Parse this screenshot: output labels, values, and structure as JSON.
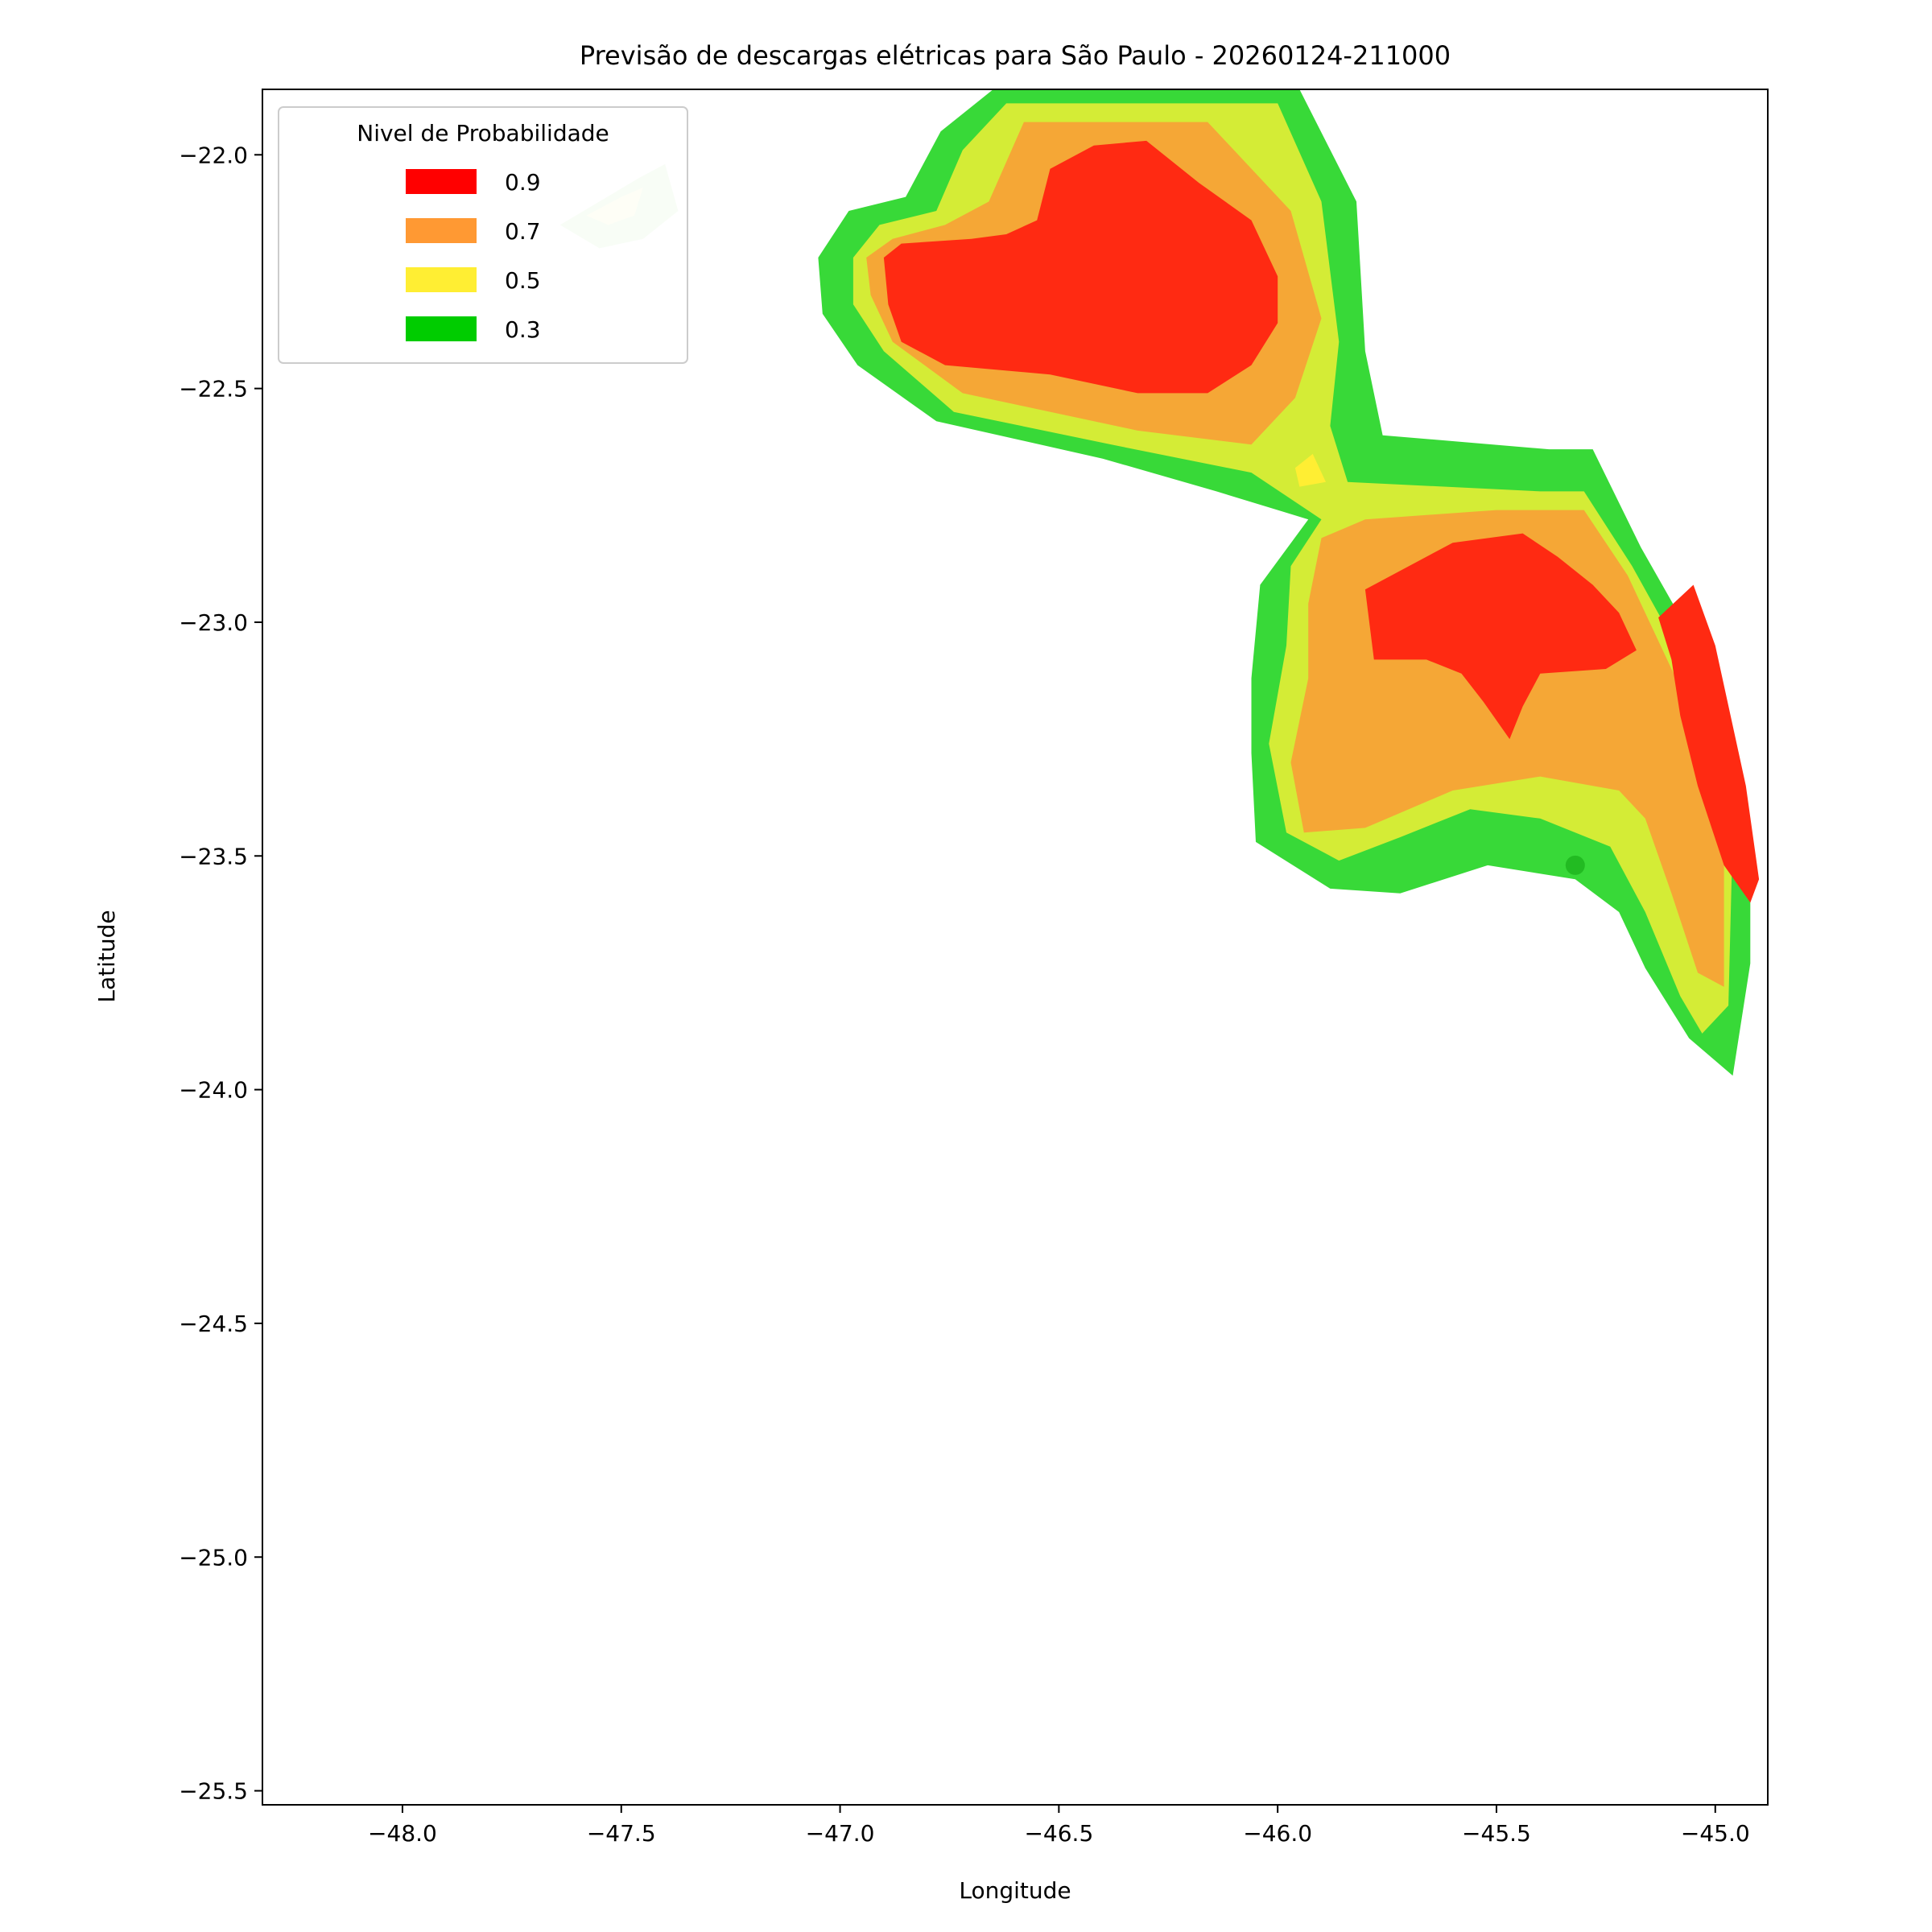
{
  "chart_data": {
    "type": "contour-map",
    "title": "Previsão de descargas elétricas para São Paulo - 20260124-211000",
    "xlabel": "Longitude",
    "ylabel": "Latitude",
    "xlim": [
      -48.32,
      -44.88
    ],
    "ylim": [
      -25.53,
      -21.86
    ],
    "xticks": [
      -48.0,
      -47.5,
      -47.0,
      -46.5,
      -46.0,
      -45.5,
      -45.0
    ],
    "xtick_labels": [
      "−48.0",
      "−47.5",
      "−47.0",
      "−46.5",
      "−46.0",
      "−45.5",
      "−45.0"
    ],
    "yticks": [
      -22.0,
      -22.5,
      -23.0,
      -23.5,
      -24.0,
      -24.5,
      -25.0,
      -25.5
    ],
    "ytick_labels": [
      "−22.0",
      "−22.5",
      "−23.0",
      "−23.5",
      "−24.0",
      "−24.5",
      "−25.0",
      "−25.5"
    ],
    "legend": {
      "title": "Nivel de Probabilidade",
      "placement": "upper-left",
      "entries": [
        {
          "label": "0.9",
          "color": "#ff0000"
        },
        {
          "label": "0.7",
          "color": "#ff9933"
        },
        {
          "label": "0.5",
          "color": "#ffee33"
        },
        {
          "label": "0.3",
          "color": "#00cc00"
        }
      ]
    },
    "layers": [
      {
        "level": 0.3,
        "color": "#38d938",
        "regions": [
          [
            [
              -47.05,
              -22.22
            ],
            [
              -46.98,
              -22.12
            ],
            [
              -46.85,
              -22.09
            ],
            [
              -46.77,
              -21.95
            ],
            [
              -46.65,
              -21.86
            ],
            [
              -45.95,
              -21.86
            ],
            [
              -45.82,
              -22.1
            ],
            [
              -45.8,
              -22.42
            ],
            [
              -45.76,
              -22.6
            ],
            [
              -45.38,
              -22.63
            ],
            [
              -45.28,
              -22.63
            ],
            [
              -45.17,
              -22.84
            ],
            [
              -45.0,
              -23.12
            ],
            [
              -44.92,
              -23.42
            ],
            [
              -44.92,
              -23.73
            ],
            [
              -44.96,
              -23.97
            ],
            [
              -45.06,
              -23.89
            ],
            [
              -45.16,
              -23.74
            ],
            [
              -45.22,
              -23.62
            ],
            [
              -45.32,
              -23.55
            ],
            [
              -45.52,
              -23.52
            ],
            [
              -45.72,
              -23.58
            ],
            [
              -45.88,
              -23.57
            ],
            [
              -46.05,
              -23.47
            ],
            [
              -46.06,
              -23.28
            ],
            [
              -46.06,
              -23.12
            ],
            [
              -46.04,
              -22.92
            ],
            [
              -45.93,
              -22.78
            ],
            [
              -46.14,
              -22.72
            ],
            [
              -46.4,
              -22.65
            ],
            [
              -46.78,
              -22.57
            ],
            [
              -46.96,
              -22.45
            ],
            [
              -47.04,
              -22.34
            ]
          ]
        ]
      },
      {
        "level": 0.5,
        "color": "#d4ec36",
        "regions": [
          [
            [
              -46.97,
              -22.22
            ],
            [
              -46.91,
              -22.15
            ],
            [
              -46.78,
              -22.12
            ],
            [
              -46.72,
              -21.99
            ],
            [
              -46.62,
              -21.89
            ],
            [
              -46.0,
              -21.89
            ],
            [
              -45.9,
              -22.1
            ],
            [
              -45.86,
              -22.4
            ],
            [
              -45.88,
              -22.58
            ],
            [
              -45.84,
              -22.7
            ],
            [
              -45.4,
              -22.72
            ],
            [
              -45.3,
              -22.72
            ],
            [
              -45.19,
              -22.88
            ],
            [
              -45.03,
              -23.15
            ],
            [
              -44.96,
              -23.45
            ],
            [
              -44.97,
              -23.82
            ],
            [
              -45.03,
              -23.88
            ],
            [
              -45.08,
              -23.8
            ],
            [
              -45.16,
              -23.62
            ],
            [
              -45.24,
              -23.48
            ],
            [
              -45.4,
              -23.42
            ],
            [
              -45.56,
              -23.4
            ],
            [
              -45.72,
              -23.46
            ],
            [
              -45.86,
              -23.51
            ],
            [
              -45.98,
              -23.45
            ],
            [
              -46.02,
              -23.26
            ],
            [
              -45.98,
              -23.05
            ],
            [
              -45.97,
              -22.88
            ],
            [
              -45.9,
              -22.78
            ],
            [
              -46.06,
              -22.68
            ],
            [
              -46.38,
              -22.62
            ],
            [
              -46.74,
              -22.55
            ],
            [
              -46.9,
              -22.42
            ],
            [
              -46.97,
              -22.32
            ]
          ]
        ]
      },
      {
        "level": 0.5,
        "color": "#ffee33",
        "regions": [
          [
            [
              -45.96,
              -22.67
            ],
            [
              -45.92,
              -22.64
            ],
            [
              -45.89,
              -22.7
            ],
            [
              -45.95,
              -22.71
            ]
          ]
        ]
      },
      {
        "level": 0.7,
        "color": "#f5a736",
        "regions": [
          [
            [
              -46.94,
              -22.22
            ],
            [
              -46.88,
              -22.18
            ],
            [
              -46.76,
              -22.15
            ],
            [
              -46.66,
              -22.1
            ],
            [
              -46.58,
              -21.93
            ],
            [
              -46.4,
              -21.93
            ],
            [
              -46.16,
              -21.93
            ],
            [
              -45.97,
              -22.12
            ],
            [
              -45.9,
              -22.35
            ],
            [
              -45.96,
              -22.52
            ],
            [
              -46.06,
              -22.62
            ],
            [
              -46.32,
              -22.59
            ],
            [
              -46.72,
              -22.51
            ],
            [
              -46.88,
              -22.4
            ],
            [
              -46.93,
              -22.3
            ]
          ],
          [
            [
              -45.9,
              -22.82
            ],
            [
              -45.8,
              -22.78
            ],
            [
              -45.5,
              -22.76
            ],
            [
              -45.3,
              -22.76
            ],
            [
              -45.2,
              -22.9
            ],
            [
              -45.06,
              -23.18
            ],
            [
              -44.98,
              -23.45
            ],
            [
              -44.98,
              -23.78
            ],
            [
              -45.04,
              -23.75
            ],
            [
              -45.1,
              -23.58
            ],
            [
              -45.16,
              -23.42
            ],
            [
              -45.22,
              -23.36
            ],
            [
              -45.4,
              -23.33
            ],
            [
              -45.6,
              -23.36
            ],
            [
              -45.8,
              -23.44
            ],
            [
              -45.94,
              -23.45
            ],
            [
              -45.97,
              -23.3
            ],
            [
              -45.93,
              -23.12
            ],
            [
              -45.93,
              -22.96
            ]
          ]
        ]
      },
      {
        "level": 0.9,
        "color": "#ff2a12",
        "regions": [
          [
            [
              -46.9,
              -22.22
            ],
            [
              -46.86,
              -22.19
            ],
            [
              -46.7,
              -22.18
            ],
            [
              -46.62,
              -22.17
            ],
            [
              -46.55,
              -22.14
            ],
            [
              -46.52,
              -22.03
            ],
            [
              -46.42,
              -21.98
            ],
            [
              -46.3,
              -21.97
            ],
            [
              -46.18,
              -22.06
            ],
            [
              -46.06,
              -22.14
            ],
            [
              -46.0,
              -22.26
            ],
            [
              -46.0,
              -22.36
            ],
            [
              -46.06,
              -22.45
            ],
            [
              -46.16,
              -22.51
            ],
            [
              -46.32,
              -22.51
            ],
            [
              -46.52,
              -22.47
            ],
            [
              -46.76,
              -22.45
            ],
            [
              -46.86,
              -22.4
            ],
            [
              -46.89,
              -22.32
            ]
          ],
          [
            [
              -45.8,
              -22.93
            ],
            [
              -45.7,
              -22.88
            ],
            [
              -45.6,
              -22.83
            ],
            [
              -45.44,
              -22.81
            ],
            [
              -45.36,
              -22.86
            ],
            [
              -45.28,
              -22.92
            ],
            [
              -45.22,
              -22.98
            ],
            [
              -45.18,
              -23.06
            ],
            [
              -45.25,
              -23.1
            ],
            [
              -45.4,
              -23.11
            ],
            [
              -45.44,
              -23.18
            ],
            [
              -45.47,
              -23.25
            ],
            [
              -45.53,
              -23.17
            ],
            [
              -45.58,
              -23.11
            ],
            [
              -45.66,
              -23.08
            ],
            [
              -45.78,
              -23.08
            ]
          ],
          [
            [
              -45.13,
              -22.99
            ],
            [
              -45.05,
              -22.92
            ],
            [
              -45.0,
              -23.05
            ],
            [
              -44.93,
              -23.35
            ],
            [
              -44.9,
              -23.55
            ],
            [
              -44.92,
              -23.6
            ],
            [
              -44.98,
              -23.52
            ],
            [
              -45.04,
              -23.35
            ],
            [
              -45.08,
              -23.2
            ],
            [
              -45.1,
              -23.08
            ]
          ]
        ]
      }
    ],
    "faint_patch": {
      "color": "#d9f2d0",
      "region": [
        [
          -47.64,
          -22.15
        ],
        [
          -47.55,
          -22.1
        ],
        [
          -47.46,
          -22.05
        ],
        [
          -47.4,
          -22.02
        ],
        [
          -47.37,
          -22.12
        ],
        [
          -47.45,
          -22.18
        ],
        [
          -47.55,
          -22.2
        ]
      ]
    },
    "faint_patch_inner": {
      "color": "#f7f7d2",
      "region": [
        [
          -47.58,
          -22.13
        ],
        [
          -47.5,
          -22.09
        ],
        [
          -47.45,
          -22.07
        ],
        [
          -47.47,
          -22.13
        ],
        [
          -47.53,
          -22.15
        ]
      ]
    },
    "marker": {
      "lon": -45.32,
      "lat": -23.52,
      "color": "#22bb22"
    }
  }
}
